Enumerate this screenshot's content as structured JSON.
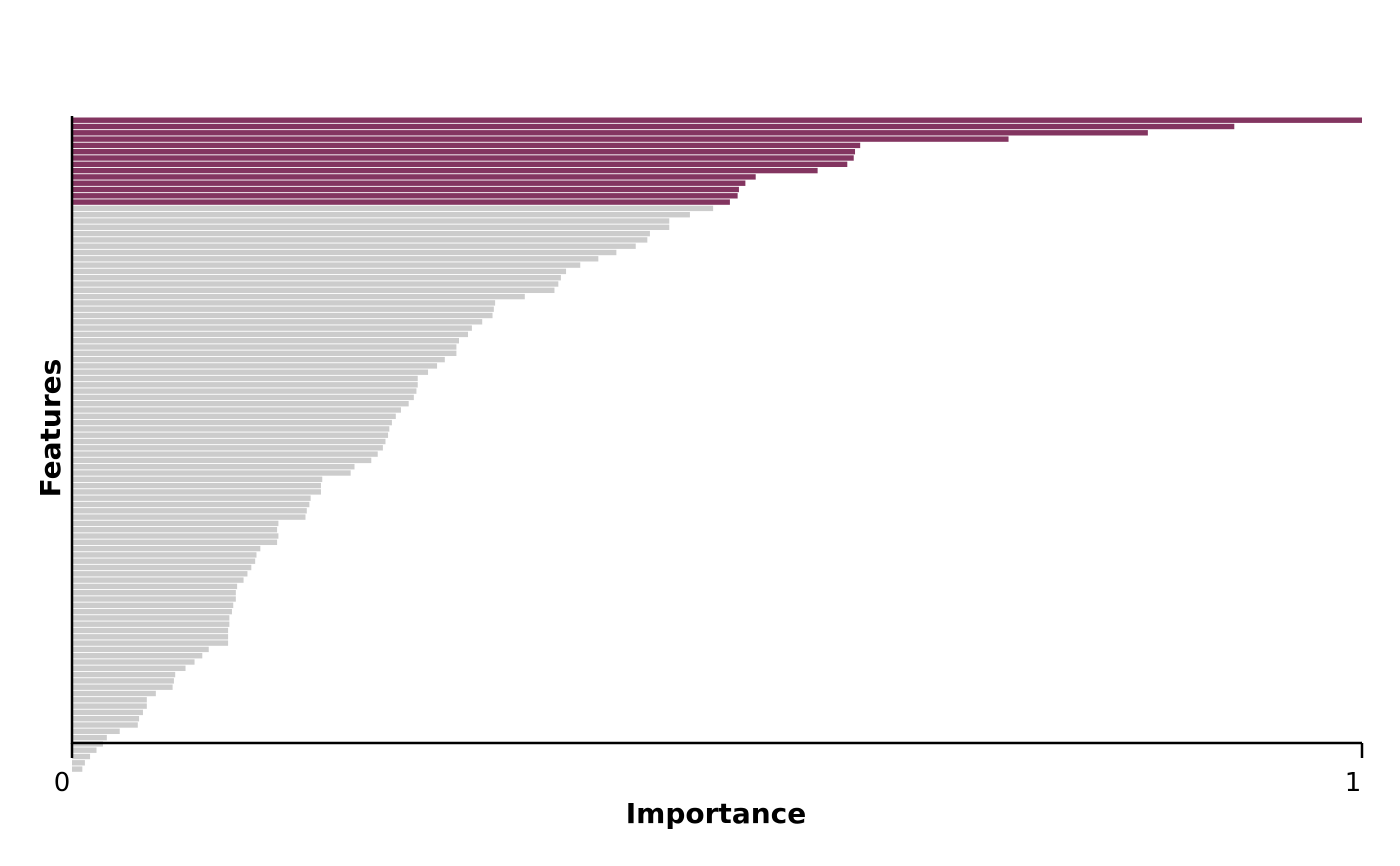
{
  "chart_data": {
    "type": "bar",
    "orientation": "horizontal",
    "title": "",
    "xlabel": "Importance",
    "ylabel": "Features",
    "xlim": [
      0,
      1
    ],
    "x_ticks": [
      "0",
      "1"
    ],
    "grid": false,
    "legend": "none",
    "colors": {
      "highlight": "#833560",
      "other": "#cccccc",
      "axis": "#000000"
    },
    "highlighted_count": 14,
    "values": [
      1.0,
      0.901,
      0.834,
      0.726,
      0.611,
      0.607,
      0.606,
      0.601,
      0.578,
      0.53,
      0.522,
      0.517,
      0.516,
      0.51,
      0.497,
      0.479,
      0.463,
      0.463,
      0.448,
      0.446,
      0.437,
      0.422,
      0.408,
      0.394,
      0.383,
      0.379,
      0.377,
      0.374,
      0.351,
      0.328,
      0.327,
      0.326,
      0.318,
      0.31,
      0.307,
      0.3,
      0.298,
      0.298,
      0.289,
      0.283,
      0.276,
      0.268,
      0.268,
      0.267,
      0.265,
      0.261,
      0.255,
      0.251,
      0.248,
      0.246,
      0.245,
      0.243,
      0.241,
      0.237,
      0.232,
      0.219,
      0.216,
      0.194,
      0.193,
      0.193,
      0.185,
      0.184,
      0.182,
      0.181,
      0.16,
      0.159,
      0.16,
      0.159,
      0.146,
      0.143,
      0.142,
      0.139,
      0.136,
      0.133,
      0.128,
      0.127,
      0.127,
      0.125,
      0.124,
      0.122,
      0.122,
      0.121,
      0.121,
      0.121,
      0.106,
      0.101,
      0.095,
      0.088,
      0.08,
      0.079,
      0.078,
      0.065,
      0.058,
      0.058,
      0.055,
      0.052,
      0.051,
      0.037,
      0.027,
      0.024,
      0.019,
      0.014,
      0.01,
      0.008
    ]
  }
}
